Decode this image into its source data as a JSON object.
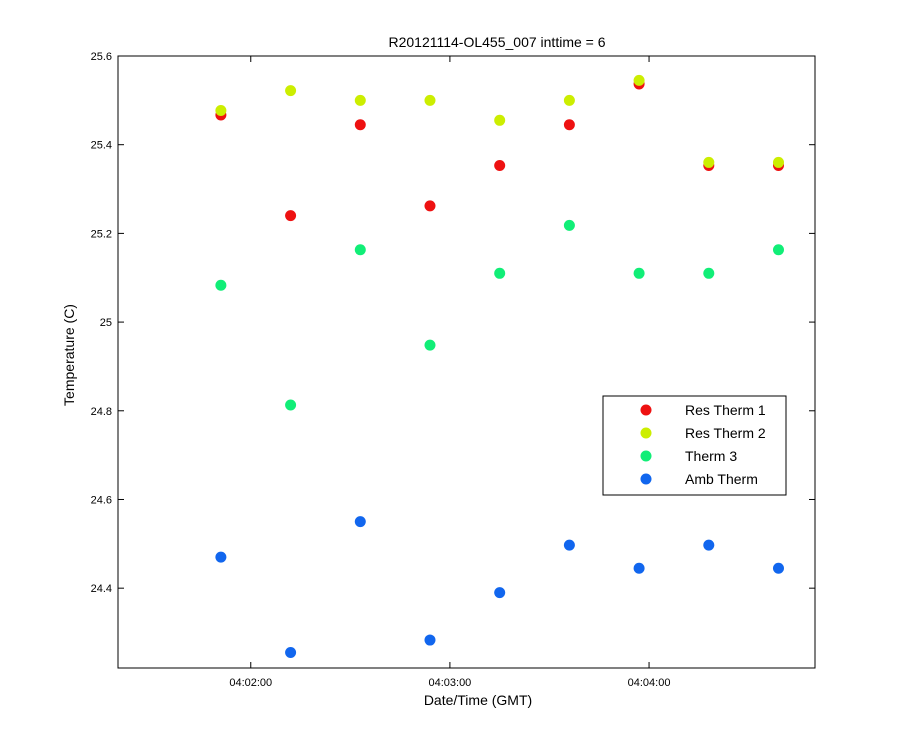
{
  "chart_data": {
    "type": "scatter",
    "title": "R20121114-OL455_007 inttime = 6",
    "xlabel": "Date/Time (GMT)",
    "ylabel": "Temperature (C)",
    "x_time_range": [
      "04:01:20",
      "04:04:50"
    ],
    "ylim": [
      24.22,
      25.6
    ],
    "x_ticks": [
      "04:02:00",
      "04:03:00",
      "04:04:00"
    ],
    "y_ticks": [
      24.4,
      24.6,
      24.8,
      25,
      25.2,
      25.4,
      25.6
    ],
    "y_tick_labels": [
      "24.4",
      "24.6",
      "24.8",
      "25",
      "25.2",
      "25.4",
      "25.6"
    ],
    "x": [
      "04:01:51",
      "04:02:12",
      "04:02:33",
      "04:02:54",
      "04:03:15",
      "04:03:36",
      "04:03:57",
      "04:04:18",
      "04:04:39"
    ],
    "series": [
      {
        "name": "Res Therm 1",
        "color": "#ee1111",
        "values": [
          25.467,
          25.24,
          25.445,
          25.262,
          25.353,
          25.445,
          25.537,
          25.353,
          25.353
        ]
      },
      {
        "name": "Res Therm 2",
        "color": "#ccee00",
        "values": [
          25.477,
          25.522,
          25.5,
          25.5,
          25.455,
          25.5,
          25.545,
          25.36,
          25.36
        ]
      },
      {
        "name": "Therm 3",
        "color": "#11ee77",
        "values": [
          25.083,
          24.813,
          25.163,
          24.948,
          25.11,
          25.218,
          25.11,
          25.11,
          25.163
        ]
      },
      {
        "name": "Amb Therm",
        "color": "#1166ee",
        "values": [
          24.47,
          24.255,
          24.55,
          24.283,
          24.39,
          24.497,
          24.445,
          24.497,
          24.445
        ]
      }
    ],
    "legend_position": "right",
    "grid": false
  }
}
